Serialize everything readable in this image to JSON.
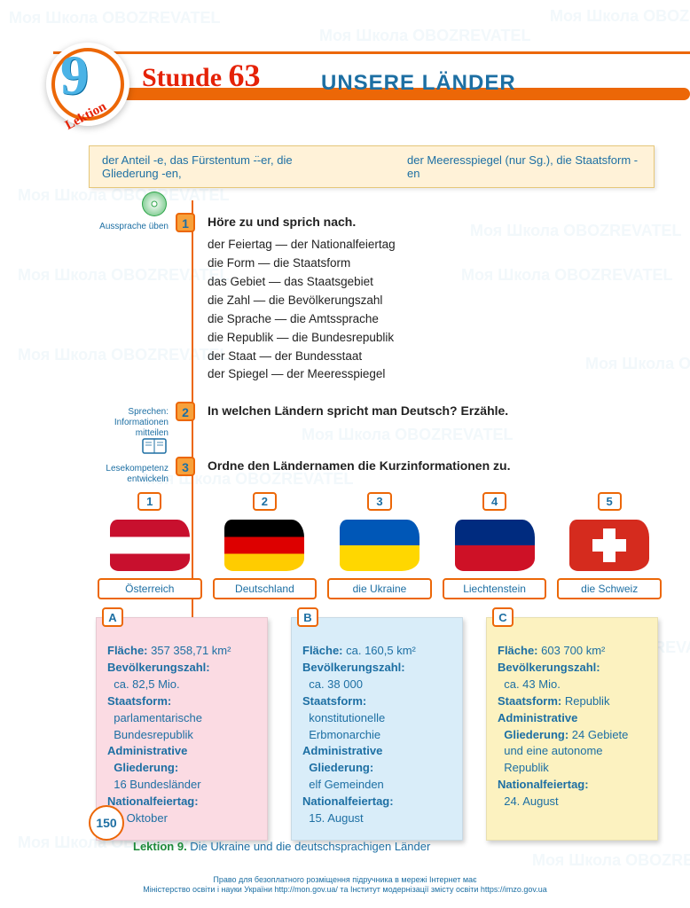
{
  "header": {
    "lektion_number": "9",
    "lektion_label": "Lektion",
    "stunde_word": "Stunde",
    "stunde_number": "63",
    "page_title": "UNSERE LÄNDER"
  },
  "vocab": {
    "left": "der Anteil -e, das Fürstentum -̈-er, die Gliederung -en,",
    "right": "der Meeresspiegel (nur Sg.), die Staatsform -en"
  },
  "ex1": {
    "num": "1",
    "sidelabel": "Aussprache üben",
    "title": "Höre zu und sprich nach.",
    "lines": [
      "der Feiertag — der Nationalfeiertag",
      "die Form — die Staatsform",
      "das Gebiet — das Staatsgebiet",
      "die Zahl — die Bevölkerungszahl",
      "die Sprache — die Amtssprache",
      "die Republik — die Bundesrepublik",
      "der Staat — der Bundesstaat",
      "der Spiegel — der Meeresspiegel"
    ]
  },
  "ex2": {
    "num": "2",
    "sidelabel": "Sprechen: Informationen mitteilen",
    "title": "In welchen Ländern spricht man Deutsch? Erzähle."
  },
  "ex3": {
    "num": "3",
    "sidelabel": "Lesekompetenz entwickeln",
    "title": "Ordne den Ländernamen die Kurzinformationen zu."
  },
  "countries": [
    {
      "tag": "1",
      "name": "Österreich",
      "colors": [
        "#c8102e",
        "#ffffff",
        "#c8102e"
      ],
      "orientation": "h"
    },
    {
      "tag": "2",
      "name": "Deutschland",
      "colors": [
        "#000000",
        "#dd0000",
        "#ffcc00"
      ],
      "orientation": "h"
    },
    {
      "tag": "3",
      "name": "die Ukraine",
      "colors": [
        "#0057b7",
        "#ffd700"
      ],
      "orientation": "h"
    },
    {
      "tag": "4",
      "name": "Liechtenstein",
      "colors": [
        "#002b7f",
        "#ce1126"
      ],
      "orientation": "h"
    },
    {
      "tag": "5",
      "name": "die Schweiz",
      "colors": [
        "#d52b1e"
      ],
      "orientation": "solid-cross"
    }
  ],
  "cards": [
    {
      "letter": "A",
      "bg_class": "card-a",
      "bg_color": "#fbdbe3",
      "lines_html": "<b>Fläche:</b> 357 358,71 km²<br><b>Bevölkerungszahl:</b><br>&nbsp;&nbsp;ca. 82,5 Mio.<br><b>Staatsform:</b><br>&nbsp;&nbsp;parlamentarische<br>&nbsp;&nbsp;Bundesrepublik<br><b>Administrative<br>&nbsp;&nbsp;Gliederung:</b><br>&nbsp;&nbsp;16 Bundesländer<br><b>Nationalfeiertag:</b><br>&nbsp;&nbsp;3. Oktober"
    },
    {
      "letter": "B",
      "bg_class": "card-b",
      "bg_color": "#d9edf9",
      "lines_html": "<b>Fläche:</b> ca. 160,5 km²<br><b>Bevölkerungszahl:</b><br>&nbsp;&nbsp;ca. 38 000<br><b>Staatsform:</b><br>&nbsp;&nbsp;konstitutionelle<br>&nbsp;&nbsp;Erbmonarchie<br><b>Administrative<br>&nbsp;&nbsp;Gliederung:</b><br>&nbsp;&nbsp;elf Gemeinden<br><b>Nationalfeiertag:</b><br>&nbsp;&nbsp;15. August"
    },
    {
      "letter": "C",
      "bg_class": "card-c",
      "bg_color": "#fcf2c0",
      "lines_html": "<b>Fläche:</b> 603 700 km²<br><b>Bevölkerungszahl:</b><br>&nbsp;&nbsp;ca. 43 Mio.<br><b>Staatsform:</b> Republik<br><b>Administrative<br>&nbsp;&nbsp;Gliederung:</b> 24 Gebiete<br>&nbsp;&nbsp;und eine autonome<br>&nbsp;&nbsp;Republik<br><b>Nationalfeiertag:</b><br>&nbsp;&nbsp;24. August"
    }
  ],
  "footer": {
    "page_number": "150",
    "lektion_line_bold": "Lektion 9.",
    "lektion_line_rest": " Die Ukraine und die deutschsprachigen Länder",
    "legal1": "Право для безоплатного розміщення підручника в мережі Інтернет має",
    "legal2": "Міністерство освіти і науки України http://mon.gov.ua/ та Інститут модернізації змісту освіти https://imzo.gov.ua"
  },
  "watermark_text": "Моя Школа  OBOZREVATEL"
}
